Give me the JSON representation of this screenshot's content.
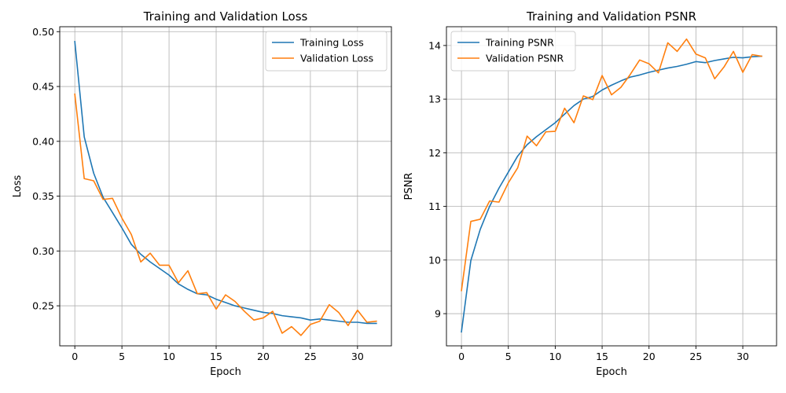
{
  "chart_data": [
    {
      "type": "line",
      "title": "Training and Validation Loss",
      "xlabel": "Epoch",
      "ylabel": "Loss",
      "xlim": [
        -1.6,
        33.6
      ],
      "ylim": [
        0.2135,
        0.5045
      ],
      "xticks": [
        0,
        5,
        10,
        15,
        20,
        25,
        30
      ],
      "yticks": [
        0.25,
        0.3,
        0.35,
        0.4,
        0.45,
        0.5
      ],
      "ytick_labels": [
        "0.25",
        "0.30",
        "0.35",
        "0.40",
        "0.45",
        "0.50"
      ],
      "grid": true,
      "legend_loc": "upper right",
      "x": [
        0,
        1,
        2,
        3,
        4,
        5,
        6,
        7,
        8,
        9,
        10,
        11,
        12,
        13,
        14,
        15,
        16,
        17,
        18,
        19,
        20,
        21,
        22,
        23,
        24,
        25,
        26,
        27,
        28,
        29,
        30,
        31,
        32
      ],
      "series": [
        {
          "name": "Training Loss",
          "color": "#1f77b4",
          "values": [
            0.491,
            0.404,
            0.371,
            0.349,
            0.335,
            0.321,
            0.306,
            0.297,
            0.29,
            0.284,
            0.278,
            0.27,
            0.265,
            0.261,
            0.26,
            0.256,
            0.253,
            0.25,
            0.248,
            0.246,
            0.244,
            0.243,
            0.241,
            0.24,
            0.239,
            0.237,
            0.238,
            0.237,
            0.236,
            0.235,
            0.235,
            0.234,
            0.234
          ]
        },
        {
          "name": "Validation Loss",
          "color": "#ff7f0e",
          "values": [
            0.443,
            0.366,
            0.364,
            0.347,
            0.348,
            0.33,
            0.315,
            0.29,
            0.298,
            0.287,
            0.287,
            0.271,
            0.282,
            0.261,
            0.262,
            0.247,
            0.26,
            0.254,
            0.245,
            0.237,
            0.239,
            0.245,
            0.225,
            0.231,
            0.223,
            0.233,
            0.236,
            0.251,
            0.244,
            0.232,
            0.246,
            0.235,
            0.236
          ]
        }
      ]
    },
    {
      "type": "line",
      "title": "Training and Validation PSNR",
      "xlabel": "Epoch",
      "ylabel": "PSNR",
      "xlim": [
        -1.6,
        33.6
      ],
      "ylim": [
        8.4,
        14.35
      ],
      "xticks": [
        0,
        5,
        10,
        15,
        20,
        25,
        30
      ],
      "yticks": [
        9,
        10,
        11,
        12,
        13,
        14
      ],
      "ytick_labels": [
        "9",
        "10",
        "11",
        "12",
        "13",
        "14"
      ],
      "grid": true,
      "legend_loc": "upper left",
      "x": [
        0,
        1,
        2,
        3,
        4,
        5,
        6,
        7,
        8,
        9,
        10,
        11,
        12,
        13,
        14,
        15,
        16,
        17,
        18,
        19,
        20,
        21,
        22,
        23,
        24,
        25,
        26,
        27,
        28,
        29,
        30,
        31,
        32
      ],
      "series": [
        {
          "name": "Training PSNR",
          "color": "#1f77b4",
          "values": [
            8.66,
            9.99,
            10.57,
            11.0,
            11.34,
            11.64,
            11.94,
            12.15,
            12.3,
            12.43,
            12.56,
            12.72,
            12.88,
            13.0,
            13.05,
            13.17,
            13.26,
            13.34,
            13.41,
            13.45,
            13.5,
            13.54,
            13.58,
            13.61,
            13.65,
            13.7,
            13.68,
            13.72,
            13.75,
            13.78,
            13.77,
            13.79,
            13.8
          ]
        },
        {
          "name": "Validation PSNR",
          "color": "#ff7f0e",
          "values": [
            9.43,
            10.72,
            10.76,
            11.1,
            11.08,
            11.44,
            11.72,
            12.31,
            12.13,
            12.39,
            12.4,
            12.83,
            12.56,
            13.06,
            12.99,
            13.44,
            13.08,
            13.22,
            13.46,
            13.73,
            13.66,
            13.49,
            14.05,
            13.89,
            14.12,
            13.84,
            13.77,
            13.38,
            13.6,
            13.89,
            13.5,
            13.83,
            13.8
          ]
        }
      ]
    }
  ]
}
